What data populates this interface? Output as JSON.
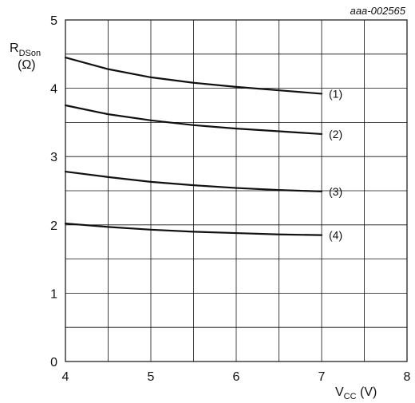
{
  "figure_code": "aaa-002565",
  "chart_data": {
    "type": "line",
    "title": "",
    "xlabel": {
      "main": "V",
      "sub": "CC",
      "unit": " (V)"
    },
    "ylabel": {
      "main": "R",
      "sub": "DSon",
      "unit": "(Ω)"
    },
    "xlim": [
      4,
      8
    ],
    "ylim": [
      0,
      5
    ],
    "xticks": [
      4,
      5,
      6,
      7,
      8
    ],
    "yticks": [
      0,
      1,
      2,
      3,
      4,
      5
    ],
    "grid": true,
    "series": [
      {
        "name": "(1)",
        "x": [
          4.0,
          4.5,
          5.0,
          5.5,
          6.0,
          6.5,
          7.0
        ],
        "y": [
          4.45,
          4.28,
          4.16,
          4.08,
          4.02,
          3.97,
          3.92
        ]
      },
      {
        "name": "(2)",
        "x": [
          4.0,
          4.5,
          5.0,
          5.5,
          6.0,
          6.5,
          7.0
        ],
        "y": [
          3.75,
          3.62,
          3.53,
          3.46,
          3.41,
          3.37,
          3.33
        ]
      },
      {
        "name": "(3)",
        "x": [
          4.0,
          4.5,
          5.0,
          5.5,
          6.0,
          6.5,
          7.0
        ],
        "y": [
          2.78,
          2.7,
          2.63,
          2.58,
          2.54,
          2.51,
          2.49
        ]
      },
      {
        "name": "(4)",
        "x": [
          4.0,
          4.5,
          5.0,
          5.5,
          6.0,
          6.5,
          7.0
        ],
        "y": [
          2.02,
          1.97,
          1.93,
          1.9,
          1.88,
          1.86,
          1.85
        ]
      }
    ]
  }
}
